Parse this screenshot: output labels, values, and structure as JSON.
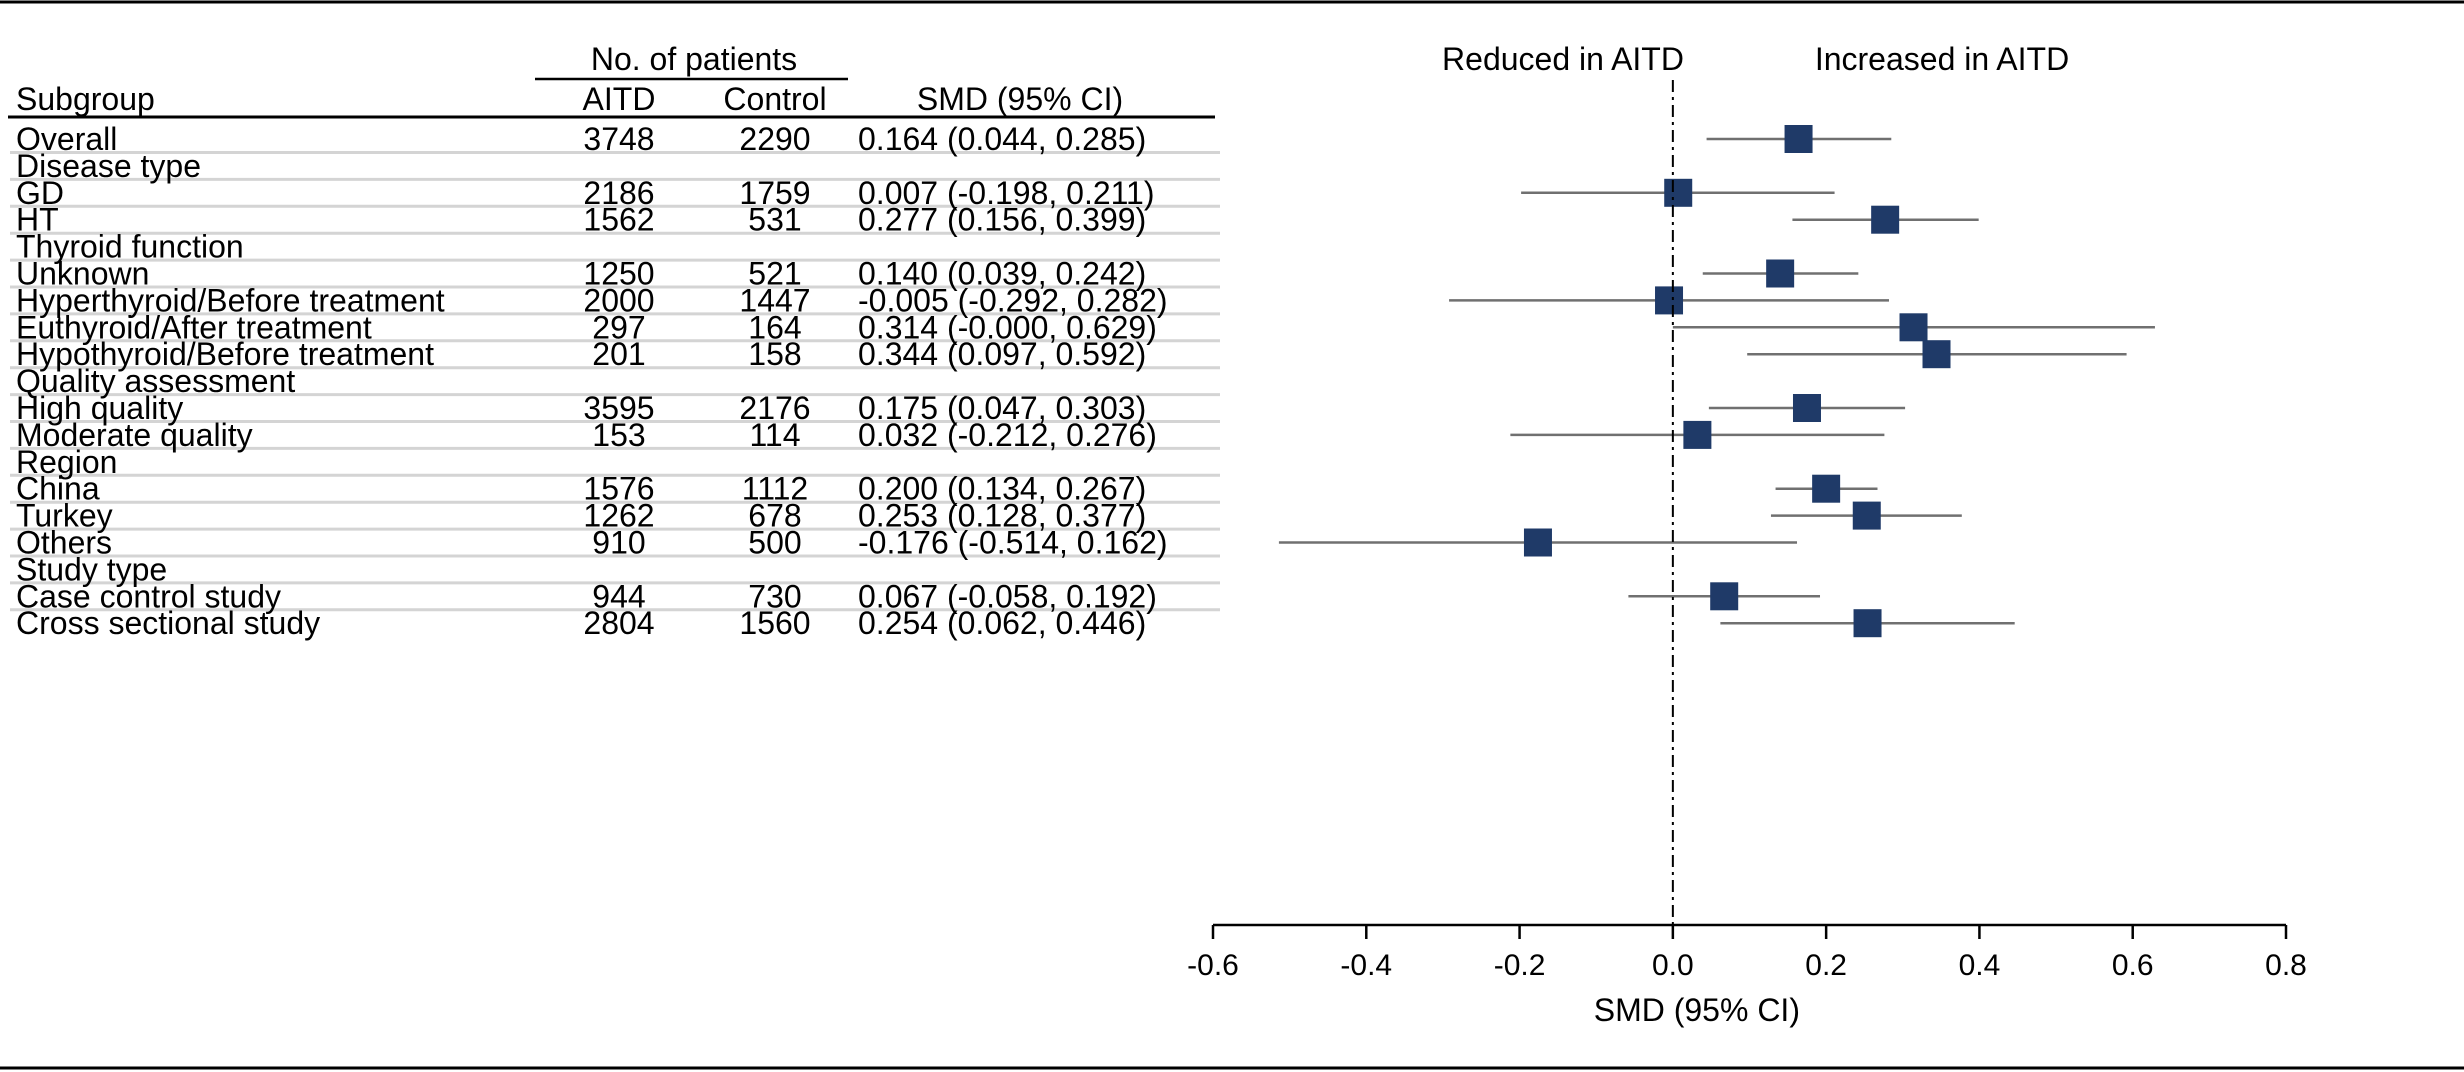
{
  "chart_data": {
    "type": "forest",
    "header": {
      "patients_group": "No. of patients",
      "subgroup": "Subgroup",
      "aitd": "AITD",
      "control": "Control",
      "smd": "SMD (95% CI)",
      "reduced_label": "Reduced in AITD",
      "increased_label": "Increased in AITD"
    },
    "rows": [
      {
        "label": "Overall",
        "kind": "data",
        "aitd": "3748",
        "control": "2290",
        "ci_text": "0.164 (0.044, 0.285)",
        "est": 0.164,
        "lo": 0.044,
        "hi": 0.285
      },
      {
        "label": "Disease type",
        "kind": "section"
      },
      {
        "label": "GD",
        "kind": "data",
        "aitd": "2186",
        "control": "1759",
        "ci_text": "0.007 (-0.198, 0.211)",
        "est": 0.007,
        "lo": -0.198,
        "hi": 0.211
      },
      {
        "label": "HT",
        "kind": "data",
        "aitd": "1562",
        "control": "531",
        "ci_text": "0.277 (0.156, 0.399)",
        "est": 0.277,
        "lo": 0.156,
        "hi": 0.399
      },
      {
        "label": "Thyroid function",
        "kind": "section"
      },
      {
        "label": "Unknown",
        "kind": "data",
        "aitd": "1250",
        "control": "521",
        "ci_text": "0.140 (0.039, 0.242)",
        "est": 0.14,
        "lo": 0.039,
        "hi": 0.242
      },
      {
        "label": "Hyperthyroid/Before treatment",
        "kind": "data",
        "aitd": "2000",
        "control": "1447",
        "ci_text": "-0.005 (-0.292, 0.282)",
        "est": -0.005,
        "lo": -0.292,
        "hi": 0.282
      },
      {
        "label": "Euthyroid/After treatment",
        "kind": "data",
        "aitd": "297",
        "control": "164",
        "ci_text": "0.314 (-0.000, 0.629)",
        "est": 0.314,
        "lo": -0.0,
        "hi": 0.629
      },
      {
        "label": "Hypothyroid/Before treatment",
        "kind": "data",
        "aitd": "201",
        "control": "158",
        "ci_text": "0.344 (0.097, 0.592)",
        "est": 0.344,
        "lo": 0.097,
        "hi": 0.592
      },
      {
        "label": "Quality assessment",
        "kind": "section"
      },
      {
        "label": "High quality",
        "kind": "data",
        "aitd": "3595",
        "control": "2176",
        "ci_text": "0.175 (0.047, 0.303)",
        "est": 0.175,
        "lo": 0.047,
        "hi": 0.303
      },
      {
        "label": "Moderate quality",
        "kind": "data",
        "aitd": "153",
        "control": "114",
        "ci_text": "0.032 (-0.212, 0.276)",
        "est": 0.032,
        "lo": -0.212,
        "hi": 0.276
      },
      {
        "label": "Region",
        "kind": "section"
      },
      {
        "label": "China",
        "kind": "data",
        "aitd": "1576",
        "control": "1112",
        "ci_text": "0.200 (0.134, 0.267)",
        "est": 0.2,
        "lo": 0.134,
        "hi": 0.267
      },
      {
        "label": "Turkey",
        "kind": "data",
        "aitd": "1262",
        "control": "678",
        "ci_text": "0.253 (0.128, 0.377)",
        "est": 0.253,
        "lo": 0.128,
        "hi": 0.377
      },
      {
        "label": "Others",
        "kind": "data",
        "aitd": "910",
        "control": "500",
        "ci_text": "-0.176 (-0.514, 0.162)",
        "est": -0.176,
        "lo": -0.514,
        "hi": 0.162
      },
      {
        "label": "Study type",
        "kind": "section"
      },
      {
        "label": "Case control study",
        "kind": "data",
        "aitd": "944",
        "control": "730",
        "ci_text": "0.067 (-0.058, 0.192)",
        "est": 0.067,
        "lo": -0.058,
        "hi": 0.192
      },
      {
        "label": "Cross sectional study",
        "kind": "data",
        "aitd": "2804",
        "control": "1560",
        "ci_text": "0.254 (0.062, 0.446)",
        "est": 0.254,
        "lo": 0.062,
        "hi": 0.446
      }
    ],
    "xlabel": "SMD (95% CI)",
    "xlim": [
      -0.6,
      0.8
    ],
    "xticks": [
      -0.6,
      -0.4,
      -0.2,
      0.0,
      0.2,
      0.4,
      0.6,
      0.8
    ],
    "xtick_labels": [
      "-0.6",
      "-0.4",
      "-0.2",
      "0.0",
      "0.2",
      "0.4",
      "0.6",
      "0.8"
    ],
    "reference_line": 0.0
  },
  "colors": {
    "marker": "#1f3a68",
    "ci_line": "#707070",
    "row_separator": "#d4d4d4",
    "text": "#000000",
    "axis": "#000000"
  }
}
